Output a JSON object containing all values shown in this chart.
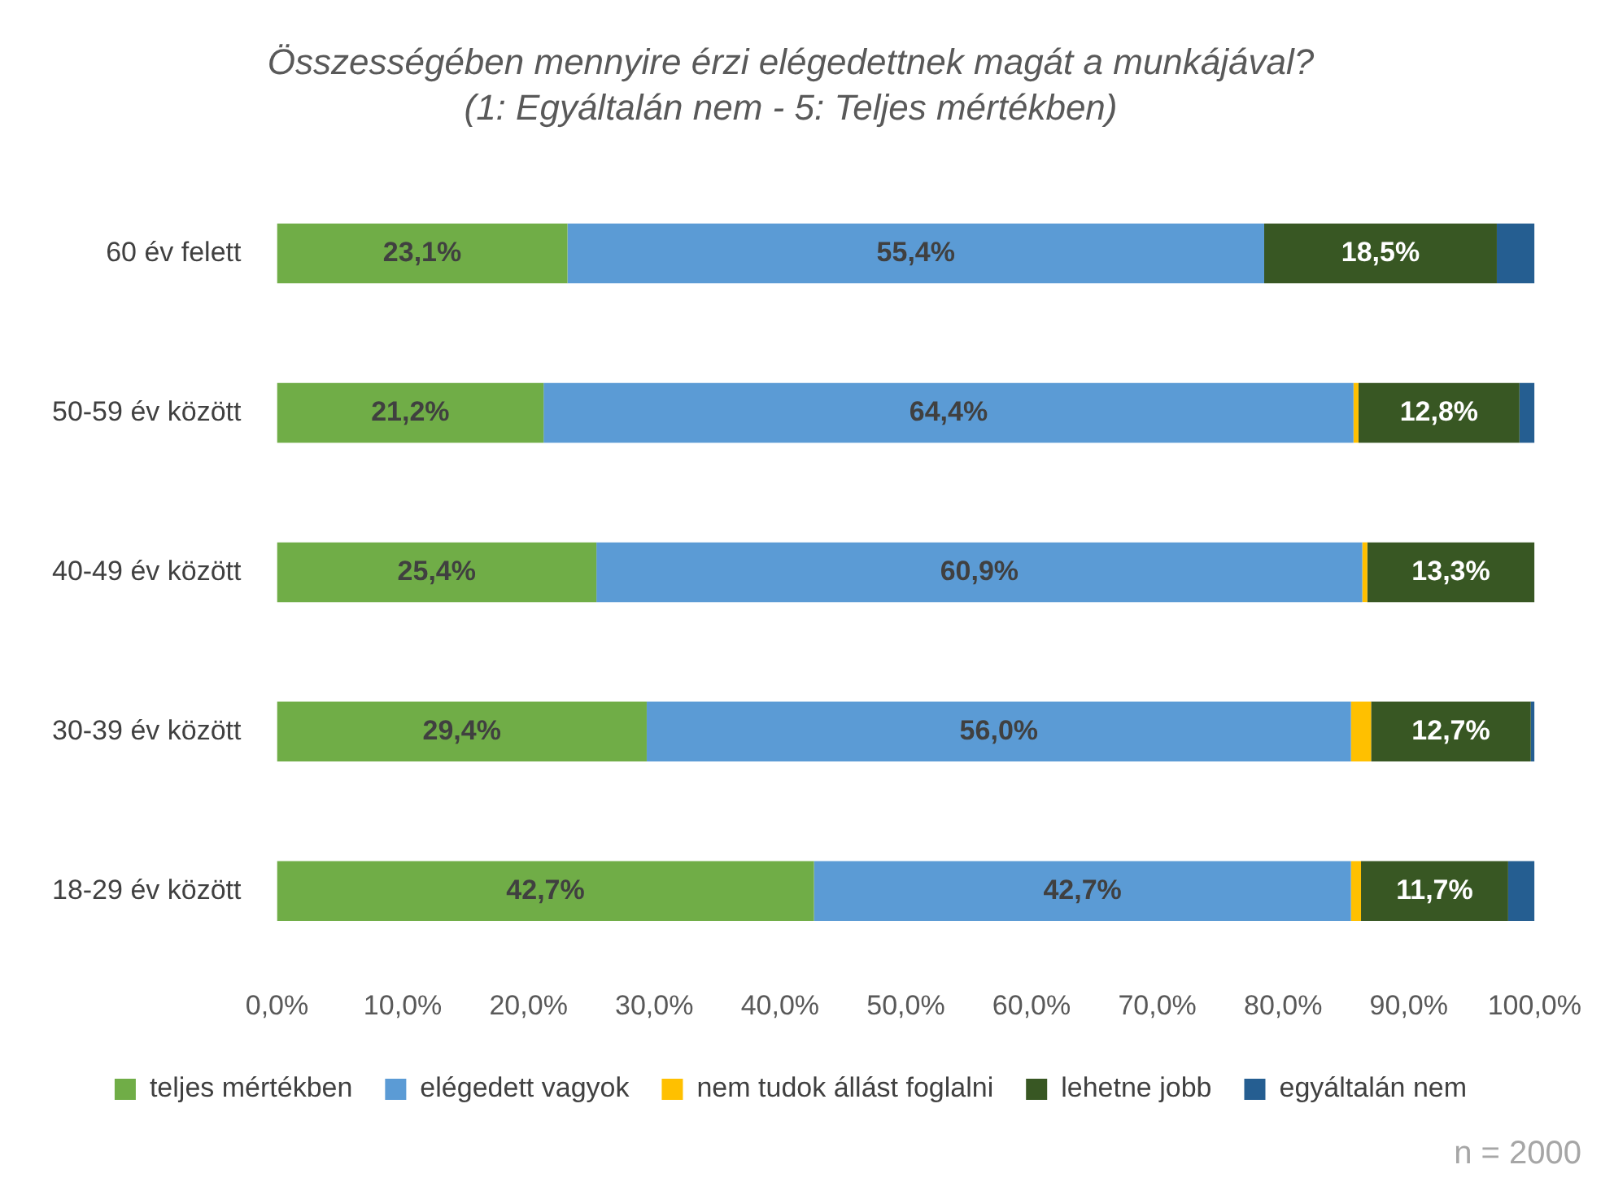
{
  "chart_data": {
    "type": "bar",
    "orientation": "horizontal",
    "stacked": true,
    "title": "Összességében mennyire érzi elégedettnek magát a munkájával?",
    "subtitle": "(1: Egyáltalán nem - 5: Teljes mértékben)",
    "categories": [
      "60 év felett",
      "50-59 év között",
      "40-49 év között",
      "30-39 év között",
      "18-29 év között"
    ],
    "series": [
      {
        "name": "teljes mértékben",
        "color": "#70ad47",
        "values": [
          23.1,
          21.2,
          25.4,
          29.4,
          42.7
        ],
        "value_labels": [
          "23,1%",
          "21,2%",
          "25,4%",
          "29,4%",
          "42,7%"
        ]
      },
      {
        "name": "elégedett vagyok",
        "color": "#5b9bd5",
        "values": [
          55.4,
          64.4,
          60.9,
          56.0,
          42.7
        ],
        "value_labels": [
          "55,4%",
          "64,4%",
          "60,9%",
          "56,0%",
          "42,7%"
        ]
      },
      {
        "name": "nem tudok állást foglalni",
        "color": "#ffc000",
        "values": [
          0,
          0.4,
          0.4,
          1.6,
          0.8
        ]
      },
      {
        "name": "lehetne jobb",
        "color": "#385723",
        "values": [
          18.5,
          12.8,
          13.3,
          12.7,
          11.7
        ],
        "value_labels": [
          "18,5%",
          "12,8%",
          "13,3%",
          "12,7%",
          "11,7%"
        ]
      },
      {
        "name": "egyáltalán nem",
        "color": "#255e91",
        "values": [
          3.0,
          1.2,
          0,
          0.3,
          2.1
        ]
      }
    ],
    "xlim": [
      0,
      100
    ],
    "xticks": [
      {
        "value": 0,
        "label": "0,0%"
      },
      {
        "value": 10,
        "label": "10,0%"
      },
      {
        "value": 20,
        "label": "20,0%"
      },
      {
        "value": 30,
        "label": "30,0%"
      },
      {
        "value": 40,
        "label": "40,0%"
      },
      {
        "value": 50,
        "label": "50,0%"
      },
      {
        "value": 60,
        "label": "60,0%"
      },
      {
        "value": 70,
        "label": "70,0%"
      },
      {
        "value": 80,
        "label": "80,0%"
      },
      {
        "value": 90,
        "label": "90,0%"
      },
      {
        "value": 100,
        "label": "100,0%"
      }
    ],
    "grid": false,
    "legend": "bottom",
    "annotations": [
      "n = 2000"
    ]
  }
}
